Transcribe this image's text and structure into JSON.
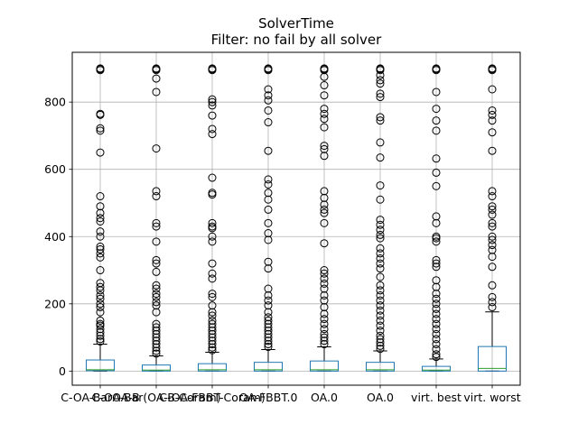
{
  "chart_data": {
    "type": "boxplot",
    "title": "SolverTime",
    "subtitle": "Filter: no fail by all solver",
    "xlabel": "",
    "ylabel": "",
    "ylim": [
      -42,
      948
    ],
    "yticks": [
      0,
      200,
      400,
      600,
      800
    ],
    "grid": true,
    "colors": {
      "box": "#1f77b4",
      "median": "#2ca02c",
      "whisker": "#000000",
      "outlier": "#000000",
      "grid": "#b0b0b0"
    },
    "categories": [
      "C-OA-BarOA-B",
      "C-OA-BarOA-Coram",
      "C-OA-FBBT-Coram",
      "OA-FBBT.0",
      "OA.0",
      "OA.0 ",
      "virt. best",
      "virt. worst"
    ],
    "tick_labels": [
      "C-OA-BarOA-B",
      "C-OA-Bar(OA-B-Coram)",
      "C-OA-FBBT-Coram)",
      "OA-FBBT.0",
      "OA.0",
      "OA.0",
      "virt. best",
      "virt. worst"
    ],
    "boxes": [
      {
        "q1": 1,
        "median": 4,
        "q3": 33,
        "whisker_low": 0,
        "whisker_high": 80,
        "outliers": [
          900,
          898,
          895,
          765,
          762,
          722,
          715,
          650,
          520,
          490,
          470,
          455,
          445,
          415,
          400,
          370,
          362,
          350,
          338,
          300,
          262,
          250,
          240,
          225,
          215,
          200,
          190,
          175,
          150,
          140,
          135,
          125,
          115,
          105,
          95,
          88
        ]
      },
      {
        "q1": 0,
        "median": 3,
        "q3": 18,
        "whisker_low": 0,
        "whisker_high": 45,
        "outliers": [
          900,
          898,
          895,
          870,
          830,
          662,
          535,
          520,
          440,
          430,
          385,
          330,
          320,
          295,
          255,
          245,
          230,
          220,
          205,
          195,
          175,
          140,
          130,
          120,
          110,
          100,
          90,
          80,
          70,
          60,
          52
        ]
      },
      {
        "q1": 0,
        "median": 4,
        "q3": 22,
        "whisker_low": 0,
        "whisker_high": 56,
        "outliers": [
          900,
          898,
          895,
          808,
          800,
          790,
          760,
          720,
          705,
          575,
          530,
          525,
          440,
          430,
          425,
          400,
          385,
          320,
          290,
          275,
          230,
          220,
          195,
          175,
          165,
          150,
          140,
          130,
          120,
          110,
          100,
          90,
          80,
          70,
          62
        ]
      },
      {
        "q1": 0,
        "median": 4,
        "q3": 26,
        "whisker_low": 0,
        "whisker_high": 64,
        "outliers": [
          900,
          898,
          895,
          838,
          820,
          805,
          775,
          740,
          655,
          570,
          555,
          530,
          510,
          480,
          440,
          410,
          390,
          325,
          305,
          245,
          225,
          210,
          195,
          175,
          160,
          150,
          140,
          130,
          120,
          110,
          100,
          90,
          80,
          72
        ]
      },
      {
        "q1": 0,
        "median": 4,
        "q3": 30,
        "whisker_low": 0,
        "whisker_high": 72,
        "outliers": [
          900,
          898,
          895,
          875,
          850,
          820,
          780,
          765,
          750,
          725,
          670,
          660,
          640,
          535,
          515,
          495,
          480,
          470,
          440,
          380,
          300,
          290,
          275,
          260,
          245,
          225,
          210,
          190,
          170,
          155,
          140,
          125,
          110,
          100,
          90,
          80
        ]
      },
      {
        "q1": 0,
        "median": 4,
        "q3": 26,
        "whisker_low": 0,
        "whisker_high": 60,
        "outliers": [
          900,
          898,
          895,
          880,
          865,
          855,
          825,
          815,
          755,
          745,
          680,
          635,
          552,
          510,
          450,
          435,
          420,
          405,
          395,
          365,
          350,
          335,
          320,
          305,
          280,
          255,
          240,
          225,
          210,
          195,
          180,
          165,
          150,
          135,
          120,
          105,
          95,
          85,
          75,
          66
        ]
      },
      {
        "q1": 0,
        "median": 3,
        "q3": 14,
        "whisker_low": 0,
        "whisker_high": 36,
        "outliers": [
          900,
          898,
          895,
          830,
          780,
          745,
          715,
          632,
          590,
          550,
          460,
          440,
          400,
          395,
          385,
          330,
          320,
          310,
          270,
          250,
          230,
          215,
          200,
          185,
          170,
          155,
          140,
          125,
          110,
          95,
          80,
          65,
          50,
          42
        ]
      },
      {
        "q1": 0,
        "median": 8,
        "q3": 73,
        "whisker_low": 0,
        "whisker_high": 176,
        "outliers": [
          900,
          898,
          895,
          838,
          775,
          762,
          745,
          710,
          655,
          535,
          520,
          490,
          480,
          465,
          440,
          430,
          400,
          390,
          375,
          360,
          340,
          310,
          255,
          220,
          205,
          190
        ]
      }
    ]
  }
}
